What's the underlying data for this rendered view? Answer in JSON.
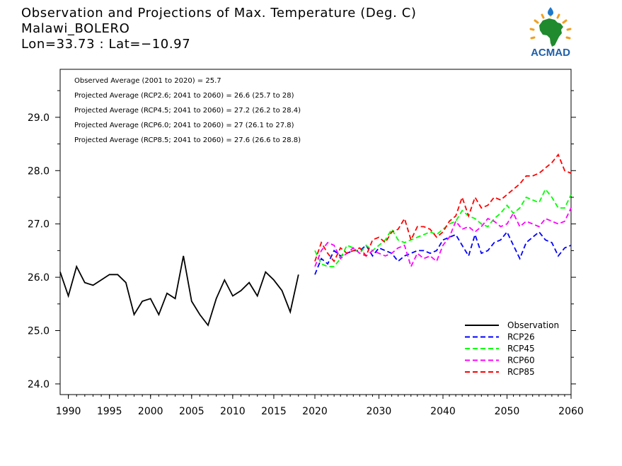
{
  "header": {
    "title": "Observation and Projections of Max. Temperature (Deg. C)",
    "station": "Malawi_BOLERO",
    "coords": "Lon=33.73 : Lat=−10.97"
  },
  "logo": {
    "text": "ACMAD",
    "icon": "africa-map-logo-icon"
  },
  "chart_data": {
    "type": "line",
    "title": "Observation and Projections of Max. Temperature (Deg. C)",
    "xlim": [
      1989,
      2060
    ],
    "ylim": [
      23.8,
      29.9
    ],
    "x_ticks": [
      "1990",
      "1995",
      "2000",
      "2005",
      "2010",
      "2015",
      "2020",
      "2030",
      "2040",
      "2050",
      "2060"
    ],
    "y_ticks": [
      "24.0",
      "25.0",
      "26.0",
      "27.0",
      "28.0",
      "29.0"
    ],
    "grid": false,
    "legend_position": "bottom-right",
    "annotations": [
      "Observed Average (2001 to 2020) = 25.7",
      "Projected Average (RCP2.6; 2041 to 2060) = 26.6 (25.7 to 28)",
      "Projected Average (RCP4.5; 2041 to 2060) = 27.2 (26.2 to 28.4)",
      "Projected Average (RCP6.0; 2041 to 2060) = 27 (26.1 to 27.8)",
      "Projected Average (RCP8.5; 2041 to 2060) = 27.6 (26.6 to 28.8)"
    ],
    "series": [
      {
        "name": "Observation",
        "color": "#000000",
        "dashed": false,
        "x_start": 1989,
        "values": [
          26.1,
          25.65,
          26.2,
          25.9,
          25.85,
          25.95,
          26.05,
          26.05,
          25.9,
          25.3,
          25.55,
          25.6,
          25.3,
          25.7,
          25.6,
          26.4,
          25.55,
          25.3,
          25.1,
          25.6,
          25.95,
          25.65,
          25.75,
          25.9,
          25.65,
          26.1,
          25.95,
          25.75,
          25.35,
          26.05
        ]
      },
      {
        "name": "RCP26",
        "color": "#0000ff",
        "dashed": true,
        "x_start": 2020,
        "values": [
          26.05,
          26.35,
          26.25,
          26.5,
          26.4,
          26.45,
          26.5,
          26.5,
          26.6,
          26.4,
          26.55,
          26.5,
          26.45,
          26.3,
          26.4,
          26.45,
          26.5,
          26.5,
          26.45,
          26.5,
          26.7,
          26.75,
          26.8,
          26.6,
          26.4,
          26.8,
          26.45,
          26.5,
          26.65,
          26.7,
          26.85,
          26.6,
          26.35,
          26.65,
          26.75,
          26.85,
          26.7,
          26.65,
          26.4,
          26.55,
          26.6
        ]
      },
      {
        "name": "RCP45",
        "color": "#00ff00",
        "dashed": true,
        "x_start": 2020,
        "values": [
          26.5,
          26.25,
          26.2,
          26.2,
          26.35,
          26.6,
          26.55,
          26.45,
          26.6,
          26.5,
          26.6,
          26.7,
          26.9,
          26.7,
          26.65,
          26.7,
          26.75,
          26.8,
          26.85,
          26.8,
          26.9,
          27.0,
          27.05,
          27.25,
          27.15,
          27.1,
          27.0,
          26.95,
          27.1,
          27.2,
          27.35,
          27.2,
          27.3,
          27.5,
          27.45,
          27.4,
          27.65,
          27.5,
          27.3,
          27.3,
          27.55
        ]
      },
      {
        "name": "RCP60",
        "color": "#ff00ff",
        "dashed": true,
        "x_start": 2020,
        "values": [
          26.2,
          26.5,
          26.65,
          26.6,
          26.35,
          26.45,
          26.55,
          26.45,
          26.4,
          26.5,
          26.45,
          26.4,
          26.45,
          26.55,
          26.6,
          26.2,
          26.45,
          26.35,
          26.4,
          26.3,
          26.6,
          26.75,
          27.05,
          26.9,
          26.95,
          26.85,
          26.95,
          27.1,
          27.05,
          26.95,
          27.0,
          27.2,
          26.95,
          27.05,
          27.0,
          26.95,
          27.1,
          27.05,
          27.0,
          27.05,
          27.3
        ]
      },
      {
        "name": "RCP85",
        "color": "#ff0000",
        "dashed": true,
        "x_start": 2020,
        "values": [
          26.3,
          26.65,
          26.45,
          26.3,
          26.55,
          26.45,
          26.5,
          26.55,
          26.4,
          26.7,
          26.75,
          26.65,
          26.85,
          26.9,
          27.1,
          26.7,
          26.95,
          26.95,
          26.9,
          26.75,
          26.85,
          27.05,
          27.15,
          27.5,
          27.15,
          27.5,
          27.3,
          27.35,
          27.5,
          27.45,
          27.55,
          27.65,
          27.75,
          27.9,
          27.9,
          27.95,
          28.05,
          28.15,
          28.3,
          28.0,
          27.95
        ]
      }
    ]
  }
}
